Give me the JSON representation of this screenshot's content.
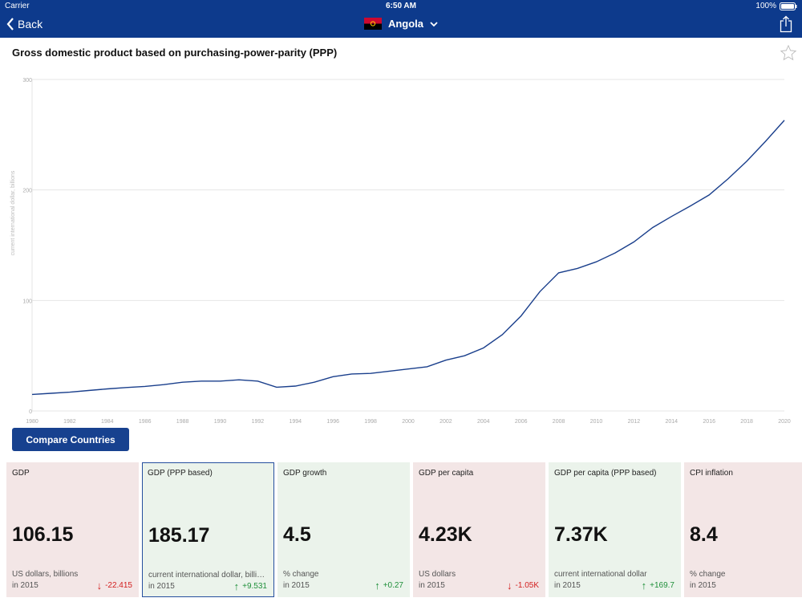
{
  "status": {
    "carrier": "Carrier",
    "time": "6:50 AM",
    "battery": "100%"
  },
  "nav": {
    "back_label": "Back",
    "country": "Angola"
  },
  "chart_title": "Gross domestic product based on purchasing-power-parity (PPP)",
  "chart_data": {
    "type": "line",
    "title": "Gross domestic product based on purchasing-power-parity (PPP)",
    "xlabel": "",
    "ylabel": "current international dollar, billions",
    "ylim": [
      0,
      300
    ],
    "xlim": [
      1980,
      2020
    ],
    "yticks": [
      "0",
      "100",
      "200",
      "300"
    ],
    "xticks": [
      "1980",
      "1982",
      "1984",
      "1986",
      "1988",
      "1990",
      "1992",
      "1994",
      "1996",
      "1998",
      "2000",
      "2002",
      "2004",
      "2006",
      "2008",
      "2010",
      "2012",
      "2014",
      "2016",
      "2018",
      "2020"
    ],
    "grid": true,
    "series": [
      {
        "x": [
          1980,
          1981,
          1982,
          1983,
          1984,
          1985,
          1986,
          1987,
          1988,
          1989,
          1990,
          1991,
          1992,
          1993,
          1994,
          1995,
          1996,
          1997,
          1998,
          1999,
          2000,
          2001,
          2002,
          2003,
          2004,
          2005,
          2006,
          2007,
          2008,
          2009,
          2010,
          2011,
          2012,
          2013,
          2014,
          2015,
          2016,
          2017,
          2018,
          2019,
          2020
        ],
        "values": [
          15,
          16,
          17,
          18.5,
          20,
          21.2,
          22.2,
          23.8,
          26,
          27,
          27,
          28.2,
          27,
          21.5,
          22.5,
          26,
          31,
          33.5,
          34,
          36,
          38,
          40,
          46,
          50,
          57,
          69,
          86,
          108,
          125,
          129,
          135,
          143,
          153,
          166,
          176,
          185.5,
          195.5,
          210,
          226,
          244,
          263
        ]
      }
    ],
    "line_color": "#1a3f8c"
  },
  "compare_button": "Compare Countries",
  "cards": [
    {
      "title": "GDP",
      "value": "106.15",
      "unit": "US dollars, billions",
      "year": "in 2015",
      "change": "-22.415",
      "direction": "down",
      "tone": "red",
      "selected": false
    },
    {
      "title": "GDP (PPP based)",
      "value": "185.17",
      "unit": "current international dollar, billions",
      "year": "in 2015",
      "change": "+9.531",
      "direction": "up",
      "tone": "green",
      "selected": true
    },
    {
      "title": "GDP growth",
      "value": "4.5",
      "unit": "% change",
      "year": "in 2015",
      "change": "+0.27",
      "direction": "up",
      "tone": "green",
      "selected": false
    },
    {
      "title": "GDP per capita",
      "value": "4.23K",
      "unit": "US dollars",
      "year": "in 2015",
      "change": "-1.05K",
      "direction": "down",
      "tone": "red",
      "selected": false
    },
    {
      "title": "GDP per capita (PPP based)",
      "value": "7.37K",
      "unit": "current international dollar",
      "year": "in 2015",
      "change": "+169.7",
      "direction": "up",
      "tone": "green",
      "selected": false
    },
    {
      "title": "CPI inflation",
      "value": "8.4",
      "unit": "% change",
      "year": "in 2015",
      "change": "",
      "direction": "up",
      "tone": "red",
      "selected": false
    }
  ],
  "colors": {
    "navbar": "#0d3a8c",
    "button": "#17418f",
    "down": "#d32020",
    "up": "#1f8f3a"
  }
}
